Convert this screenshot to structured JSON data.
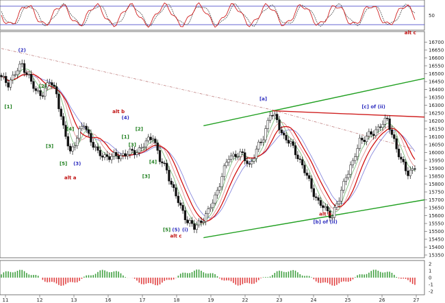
{
  "chart_data": {
    "type": "candlestick",
    "x_ticks": [
      "11",
      "12",
      "13",
      "16",
      "17",
      "18",
      "19",
      "22",
      "23",
      "24",
      "25",
      "26",
      "27"
    ],
    "price_axis": {
      "min": 15350,
      "max": 16750,
      "ticks": [
        16700,
        16650,
        16600,
        16550,
        16500,
        16450,
        16400,
        16350,
        16300,
        16250,
        16200,
        16150,
        16100,
        16050,
        16000,
        15950,
        15900,
        15850,
        15800,
        15750,
        15700,
        15650,
        15600,
        15550,
        15500,
        15450,
        15400,
        15350
      ]
    },
    "oscillator_axis": {
      "ticks": [
        "50"
      ]
    },
    "histogram_axis": {
      "ticks": [
        "2",
        "1",
        "0",
        "-1",
        "-2"
      ]
    },
    "close_path": [
      [
        0,
        16470
      ],
      [
        3,
        16440
      ],
      [
        6,
        16500
      ],
      [
        9,
        16560
      ],
      [
        12,
        16480
      ],
      [
        15,
        16380
      ],
      [
        18,
        16380
      ],
      [
        21,
        16450
      ],
      [
        24,
        16380
      ],
      [
        27,
        16150
      ],
      [
        30,
        16000
      ],
      [
        33,
        16100
      ],
      [
        36,
        16180
      ],
      [
        39,
        16080
      ],
      [
        42,
        15990
      ],
      [
        45,
        15980
      ],
      [
        48,
        15970
      ],
      [
        51,
        15980
      ],
      [
        54,
        15990
      ],
      [
        57,
        16000
      ],
      [
        60,
        16020
      ],
      [
        63,
        16060
      ],
      [
        66,
        16110
      ],
      [
        69,
        15950
      ],
      [
        72,
        15890
      ],
      [
        75,
        15760
      ],
      [
        78,
        15650
      ],
      [
        81,
        15570
      ],
      [
        84,
        15520
      ],
      [
        87,
        15570
      ],
      [
        90,
        15620
      ],
      [
        93,
        15720
      ],
      [
        96,
        15850
      ],
      [
        99,
        15970
      ],
      [
        102,
        15990
      ],
      [
        105,
        15980
      ],
      [
        108,
        15920
      ],
      [
        111,
        16010
      ],
      [
        114,
        16100
      ],
      [
        117,
        16250
      ],
      [
        120,
        16200
      ],
      [
        123,
        16100
      ],
      [
        126,
        16050
      ],
      [
        129,
        15980
      ],
      [
        132,
        15880
      ],
      [
        135,
        15780
      ],
      [
        138,
        15680
      ],
      [
        141,
        15640
      ],
      [
        144,
        15600
      ],
      [
        147,
        15700
      ],
      [
        150,
        15860
      ],
      [
        153,
        15930
      ],
      [
        156,
        16080
      ],
      [
        159,
        16100
      ],
      [
        162,
        16120
      ],
      [
        165,
        16180
      ],
      [
        168,
        16200
      ],
      [
        171,
        16080
      ],
      [
        174,
        15940
      ],
      [
        177,
        15870
      ],
      [
        180,
        15910
      ]
    ],
    "wave_labels": [
      {
        "text": "(2)",
        "x": 9,
        "y": 16640,
        "color": "#3030c0"
      },
      {
        "text": "[1]",
        "x": 3,
        "y": 16280,
        "color": "#208020"
      },
      {
        "text": "[2]",
        "x": 18,
        "y": 16410,
        "color": "#208020"
      },
      {
        "text": "[3]",
        "x": 21,
        "y": 16030,
        "color": "#208020"
      },
      {
        "text": "[4]",
        "x": 30,
        "y": 16140,
        "color": "#208020"
      },
      {
        "text": "[5]",
        "x": 27,
        "y": 15920,
        "color": "#208020"
      },
      {
        "text": "(3)",
        "x": 33,
        "y": 15920,
        "color": "#3030c0"
      },
      {
        "text": "alt a",
        "x": 30,
        "y": 15830,
        "color": "#c01010"
      },
      {
        "text": "alt b",
        "x": 51,
        "y": 16250,
        "color": "#c01010"
      },
      {
        "text": "(4)",
        "x": 54,
        "y": 16210,
        "color": "#3030c0"
      },
      {
        "text": "[2]",
        "x": 60,
        "y": 16140,
        "color": "#208020"
      },
      {
        "text": "[1]",
        "x": 54,
        "y": 16090,
        "color": "#208020"
      },
      {
        "text": "[3]",
        "x": 57,
        "y": 16040,
        "color": "#208020"
      },
      {
        "text": "[4]",
        "x": 66,
        "y": 15930,
        "color": "#208020"
      },
      {
        "text": "[3]",
        "x": 63,
        "y": 15840,
        "color": "#208020"
      },
      {
        "text": "[5]",
        "x": 72,
        "y": 15500,
        "color": "#208020"
      },
      {
        "text": "(5)",
        "x": 76,
        "y": 15500,
        "color": "#3030c0"
      },
      {
        "text": "(i)",
        "x": 80,
        "y": 15500,
        "color": "#3030c0"
      },
      {
        "text": "alt c",
        "x": 76,
        "y": 15460,
        "color": "#c01010"
      },
      {
        "text": "[a]",
        "x": 114,
        "y": 16330,
        "color": "#3030c0"
      },
      {
        "text": "[b] of (ii)",
        "x": 141,
        "y": 15550,
        "color": "#3030c0"
      },
      {
        "text": "[c] of (ii)",
        "x": 162,
        "y": 16280,
        "color": "#3030c0"
      },
      {
        "text": "alt c",
        "x": 178,
        "y": 16750,
        "color": "#c01010"
      },
      {
        "text": "alt b",
        "x": 141,
        "y": 15600,
        "color": "#c01010"
      }
    ]
  }
}
